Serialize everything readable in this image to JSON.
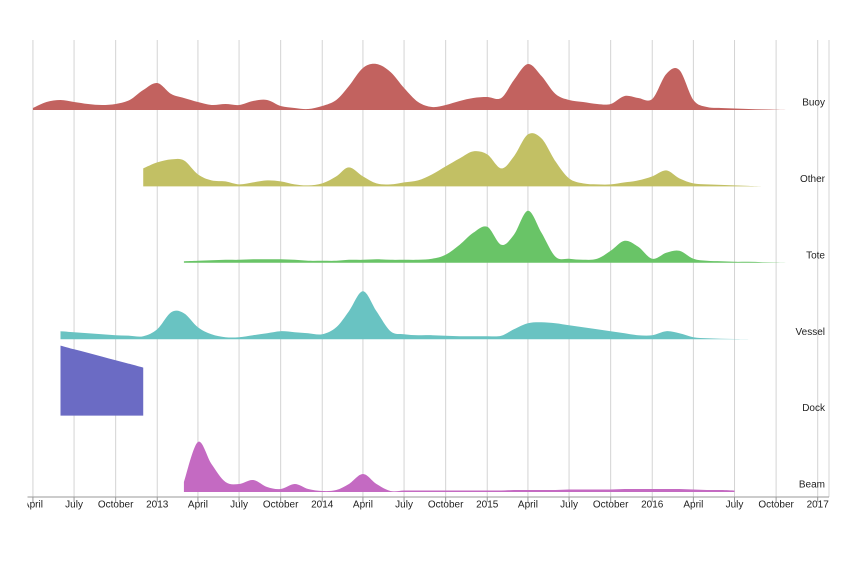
{
  "chart_data": {
    "type": "ridgeline",
    "xlim": [
      "2012-03-20",
      "2017-01-26"
    ],
    "xticks": [
      {
        "value": "2012-04",
        "label": "April"
      },
      {
        "value": "2012-07",
        "label": "July"
      },
      {
        "value": "2012-10",
        "label": "October"
      },
      {
        "value": "2013-01",
        "label": "2013"
      },
      {
        "value": "2013-04",
        "label": "April"
      },
      {
        "value": "2013-07",
        "label": "July"
      },
      {
        "value": "2013-10",
        "label": "October"
      },
      {
        "value": "2014-01",
        "label": "2014"
      },
      {
        "value": "2014-04",
        "label": "April"
      },
      {
        "value": "2014-07",
        "label": "July"
      },
      {
        "value": "2014-10",
        "label": "October"
      },
      {
        "value": "2015-01",
        "label": "2015"
      },
      {
        "value": "2015-04",
        "label": "April"
      },
      {
        "value": "2015-07",
        "label": "July"
      },
      {
        "value": "2015-10",
        "label": "October"
      },
      {
        "value": "2016-01",
        "label": "2016"
      },
      {
        "value": "2016-04",
        "label": "April"
      },
      {
        "value": "2016-07",
        "label": "July"
      },
      {
        "value": "2016-10",
        "label": "October"
      },
      {
        "value": "2017-01",
        "label": "2017"
      }
    ],
    "ylim": [
      0,
      80
    ],
    "grid": true,
    "series": [
      {
        "name": "Buoy",
        "color": "#c2625f",
        "start": "2012-04",
        "values": [
          2,
          8,
          10,
          8,
          6,
          5,
          6,
          10,
          20,
          27,
          16,
          12,
          8,
          5,
          6,
          5,
          9,
          10,
          4,
          2,
          1,
          4,
          10,
          24,
          42,
          46,
          38,
          22,
          8,
          3,
          5,
          9,
          12,
          13,
          12,
          30,
          46,
          34,
          16,
          10,
          8,
          6,
          6,
          14,
          12,
          11,
          36,
          40,
          10,
          3,
          2,
          1.5,
          1,
          0.6,
          0.3,
          0
        ]
      },
      {
        "name": "Other",
        "color": "#c2c064",
        "start": "2012-12",
        "values": [
          18,
          24,
          27,
          26,
          12,
          6,
          5,
          2,
          4,
          6,
          5,
          2,
          1,
          3,
          10,
          19,
          10,
          3,
          2,
          4,
          6,
          12,
          20,
          28,
          35,
          32,
          18,
          30,
          52,
          48,
          25,
          8,
          3,
          2,
          2,
          4,
          6,
          10,
          16,
          8,
          3,
          2,
          1.5,
          1,
          0.5,
          0
        ]
      },
      {
        "name": "Tote",
        "color": "#69c467",
        "start": "2013-03",
        "values": [
          1.5,
          2,
          2.5,
          3,
          3,
          3.5,
          3.5,
          3.5,
          3,
          2,
          2,
          2,
          3,
          3,
          3.5,
          3,
          3,
          3,
          4,
          8,
          18,
          30,
          36,
          18,
          28,
          52,
          30,
          6,
          4,
          3,
          4,
          12,
          22,
          16,
          4,
          10,
          12,
          4,
          2,
          1.5,
          1,
          1,
          0.6,
          0.3,
          0
        ]
      },
      {
        "name": "Vessel",
        "color": "#69c3c2",
        "start": "2012-06",
        "values": [
          8,
          7,
          6,
          5,
          4,
          3.5,
          3,
          10,
          27,
          26,
          12,
          5,
          2,
          2,
          4,
          6,
          8,
          7,
          6,
          5,
          12,
          28,
          48,
          28,
          8,
          5,
          4,
          4,
          3.5,
          3,
          3,
          3,
          3.5,
          10,
          16,
          17,
          16,
          14,
          12,
          10,
          8,
          6,
          4,
          4,
          8,
          6,
          2,
          1,
          0.5,
          0.2,
          0
        ]
      },
      {
        "name": "Dock",
        "color": "#6b6bc4",
        "start": "2012-06",
        "values": [
          70,
          66.3,
          62.7,
          59,
          55.3,
          51.7,
          48
        ]
      },
      {
        "name": "Beam",
        "color": "#c46ac2",
        "start": "2013-03",
        "values": [
          10,
          50,
          28,
          10,
          8,
          12,
          5,
          3,
          8,
          3,
          1,
          2,
          8,
          18,
          8,
          1,
          1.5,
          1.5,
          1.5,
          1.5,
          1.5,
          1.5,
          1.5,
          1.5,
          2,
          2,
          2,
          2,
          2.5,
          2.5,
          2.5,
          2.5,
          3,
          3,
          3,
          3,
          3,
          2.5,
          2,
          2,
          1.5
        ]
      }
    ]
  }
}
